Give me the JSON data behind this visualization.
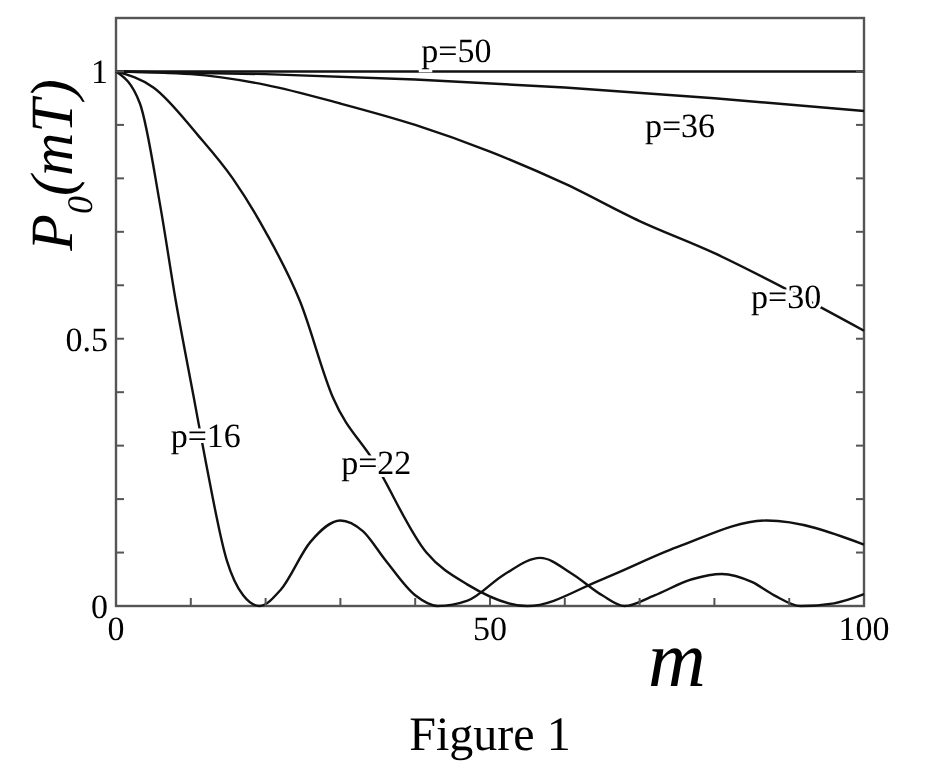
{
  "chart_data": {
    "type": "line",
    "xlabel": "m",
    "ylabel": "P$_{0}$(mT)",
    "annotations": [
      "Figure 1"
    ],
    "xlim": [
      0,
      100
    ],
    "ylim": [
      0,
      1.1
    ],
    "xticks": [
      0,
      {
        "value": 10,
        "label": null
      },
      {
        "value": 20,
        "label": null
      },
      {
        "value": 30,
        "label": null
      },
      {
        "value": 40,
        "label": null
      },
      50,
      {
        "value": 60,
        "label": null
      },
      {
        "value": 70,
        "label": null
      },
      {
        "value": 80,
        "label": null
      },
      {
        "value": 90,
        "label": null
      },
      100
    ],
    "yticks": [
      0,
      {
        "value": 0.1,
        "label": null
      },
      {
        "value": 0.2,
        "label": null
      },
      {
        "value": 0.3,
        "label": null
      },
      {
        "value": 0.4,
        "label": null
      },
      0.5,
      {
        "value": 0.6,
        "label": null
      },
      {
        "value": 0.7,
        "label": null
      },
      {
        "value": 0.8,
        "label": null
      },
      {
        "value": 0.9,
        "label": null
      },
      1
    ],
    "grid": false,
    "marker": "none",
    "line_style": "solid",
    "series": [
      {
        "name": "p=50",
        "color": "#111111",
        "x": [
          0,
          50,
          100
        ],
        "values": [
          1,
          1,
          1
        ]
      },
      {
        "name": "p=36",
        "color": "#111111",
        "x": [
          0,
          20,
          40,
          60,
          80,
          100
        ],
        "values": [
          1,
          0.995,
          0.985,
          0.97,
          0.95,
          0.926
        ]
      },
      {
        "name": "p=30",
        "color": "#111111",
        "x": [
          0,
          10,
          20,
          30,
          40,
          50,
          60,
          70,
          80,
          90,
          100
        ],
        "values": [
          1,
          0.995,
          0.975,
          0.94,
          0.9,
          0.85,
          0.79,
          0.72,
          0.66,
          0.59,
          0.515
        ]
      },
      {
        "name": "p=22",
        "color": "#111111",
        "x": [
          0,
          5,
          11,
          15.6,
          20,
          24.6,
          29,
          34.5,
          41.5,
          47,
          55,
          65,
          75,
          87,
          100
        ],
        "values": [
          1,
          0.97,
          0.88,
          0.8,
          0.7,
          0.57,
          0.39,
          0.27,
          0.1,
          0.04,
          0,
          0.05,
          0.11,
          0.16,
          0.115
        ]
      },
      {
        "name": "p=16",
        "color": "#111111",
        "x": [
          0,
          3.2,
          5.9,
          8,
          10.4,
          12,
          14.8,
          17,
          19.2,
          22,
          26,
          30,
          33,
          36,
          40,
          43,
          47,
          52,
          56.7,
          61,
          65,
          68,
          72,
          77,
          81,
          85,
          88,
          91.5,
          96,
          100
        ],
        "values": [
          1,
          0.94,
          0.75,
          0.57,
          0.39,
          0.27,
          0.086,
          0.02,
          0,
          0.03,
          0.12,
          0.16,
          0.14,
          0.086,
          0.02,
          0,
          0.01,
          0.06,
          0.09,
          0.06,
          0.02,
          0,
          0.02,
          0.05,
          0.06,
          0.045,
          0.02,
          0,
          0.005,
          0.022
        ]
      }
    ]
  }
}
